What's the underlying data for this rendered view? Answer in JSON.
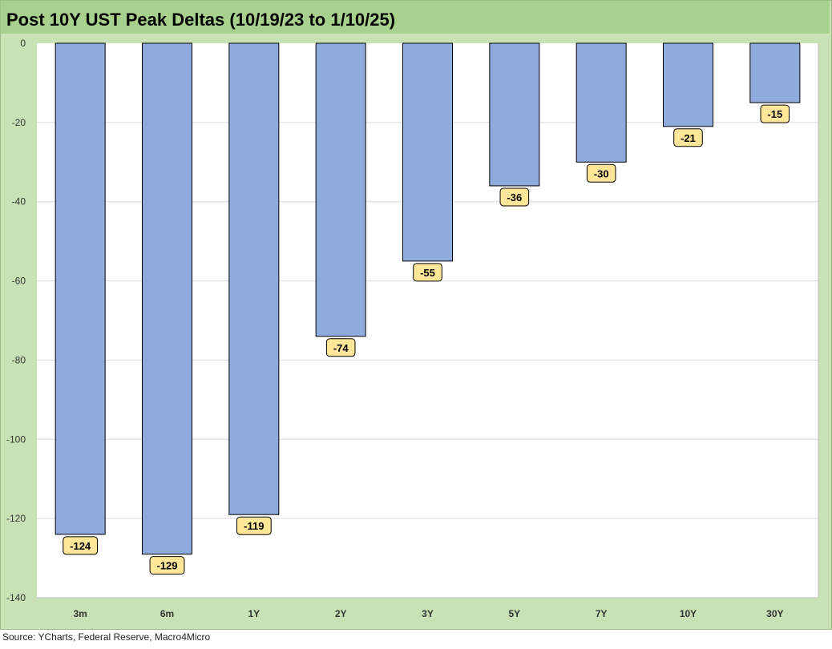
{
  "chart_data": {
    "type": "bar",
    "title": "Post 10Y UST Peak Deltas (10/19/23 to 1/10/25)",
    "categories": [
      "3m",
      "6m",
      "1Y",
      "2Y",
      "3Y",
      "5Y",
      "7Y",
      "10Y",
      "30Y"
    ],
    "values": [
      -124,
      -129,
      -119,
      -74,
      -55,
      -36,
      -30,
      -21,
      -15
    ],
    "data_labels": [
      "-124",
      "-129",
      "-119",
      "-74",
      "-55",
      "-36",
      "-30",
      "-21",
      "-15"
    ],
    "ylim": [
      -140,
      0
    ],
    "yticks": [
      0,
      -20,
      -40,
      -60,
      -80,
      -100,
      -120,
      -140
    ],
    "grid": true,
    "legend": "none",
    "colors": {
      "bar": "#8faadc",
      "bar_outline": "#000000",
      "label_fill": "#ffe699",
      "frame": "#c8e2b6",
      "title_bar": "#a9d18e",
      "gridline": "#d9d9d9"
    }
  },
  "footer": {
    "source": "Source: YCharts, Federal Reserve, Macro4Micro"
  }
}
